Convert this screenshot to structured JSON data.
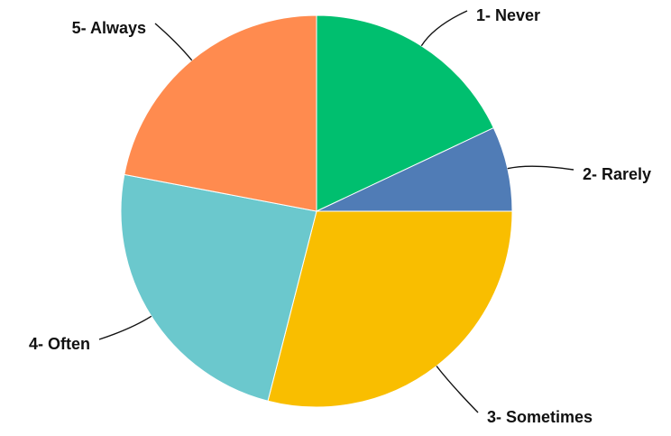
{
  "chart_data": {
    "type": "pie",
    "title": "",
    "categories": [
      "1- Never",
      "2- Rarely",
      "3- Sometimes",
      "4- Often",
      "5- Always"
    ],
    "values": [
      18,
      7,
      29,
      24,
      22
    ],
    "colors": [
      "#00BF6F",
      "#507CB6",
      "#F9BE00",
      "#6BC8CD",
      "#FF8B4F"
    ],
    "start_angle_deg": 0,
    "direction": "clockwise",
    "legend": "none",
    "labels_outside": true
  }
}
